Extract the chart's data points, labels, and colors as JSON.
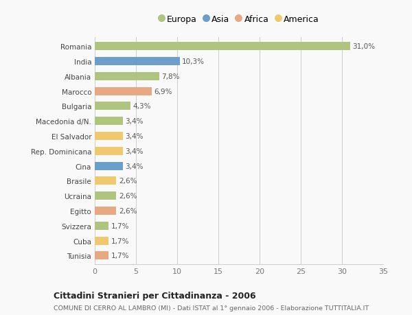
{
  "countries": [
    "Romania",
    "India",
    "Albania",
    "Marocco",
    "Bulgaria",
    "Macedonia d/N.",
    "El Salvador",
    "Rep. Dominicana",
    "Cina",
    "Brasile",
    "Ucraina",
    "Egitto",
    "Svizzera",
    "Cuba",
    "Tunisia"
  ],
  "values": [
    31.0,
    10.3,
    7.8,
    6.9,
    4.3,
    3.4,
    3.4,
    3.4,
    3.4,
    2.6,
    2.6,
    2.6,
    1.7,
    1.7,
    1.7
  ],
  "labels": [
    "31,0%",
    "10,3%",
    "7,8%",
    "6,9%",
    "4,3%",
    "3,4%",
    "3,4%",
    "3,4%",
    "3,4%",
    "2,6%",
    "2,6%",
    "2,6%",
    "1,7%",
    "1,7%",
    "1,7%"
  ],
  "colors": [
    "#aec47f",
    "#6b9ec9",
    "#aec47f",
    "#e8a882",
    "#aec47f",
    "#aec47f",
    "#f0c96e",
    "#f0c96e",
    "#6b9ec9",
    "#f0c96e",
    "#aec47f",
    "#e8a882",
    "#aec47f",
    "#f0c96e",
    "#e8a882"
  ],
  "legend": [
    {
      "label": "Europa",
      "color": "#aec47f"
    },
    {
      "label": "Asia",
      "color": "#6b9ec9"
    },
    {
      "label": "Africa",
      "color": "#e8a882"
    },
    {
      "label": "America",
      "color": "#f0c96e"
    }
  ],
  "xlim": [
    0,
    35
  ],
  "xticks": [
    0,
    5,
    10,
    15,
    20,
    25,
    30,
    35
  ],
  "title": "Cittadini Stranieri per Cittadinanza - 2006",
  "subtitle": "COMUNE DI CERRO AL LAMBRO (MI) - Dati ISTAT al 1° gennaio 2006 - Elaborazione TUTTITALIA.IT",
  "bg_color": "#f9f9f9",
  "bar_height": 0.55,
  "grid_color": "#cccccc"
}
